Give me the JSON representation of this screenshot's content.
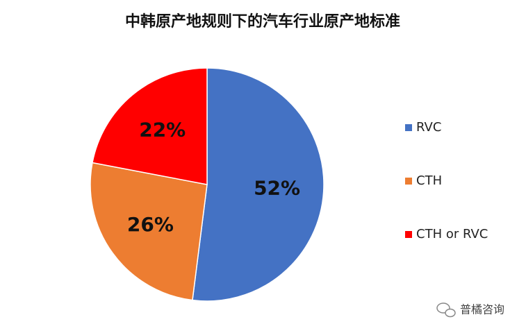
{
  "chart_data": {
    "type": "pie",
    "title": "中韩原产地规则下的汽车行业原产地标准",
    "categories": [
      "RVC",
      "CTH",
      "CTH or RVC"
    ],
    "values": [
      52,
      26,
      22
    ],
    "value_labels": [
      "52%",
      "26%",
      "22%"
    ],
    "colors": [
      "#4472c4",
      "#ed7d31",
      "#ff0000"
    ],
    "legend": "right"
  },
  "watermark": "普橘咨询"
}
